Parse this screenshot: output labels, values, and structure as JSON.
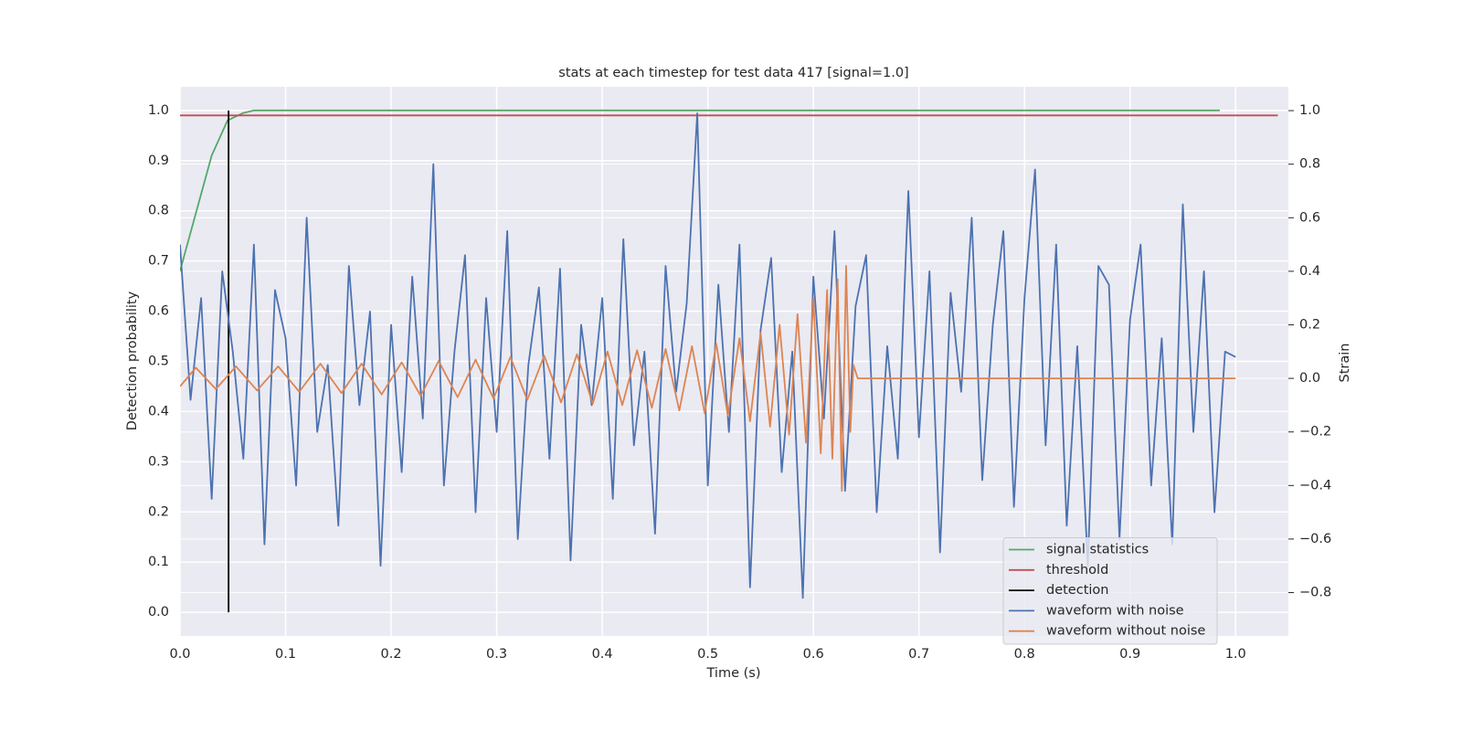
{
  "chart_data": {
    "type": "line",
    "title": "stats at each timestep for test data 417 [signal=1.0]",
    "xlabel": "Time (s)",
    "ylabel": "Detection probability",
    "y2label": "Strain",
    "xlim": [
      0,
      1.05
    ],
    "ylim": [
      -0.047,
      1.047
    ],
    "y2lim": [
      -0.962,
      1.089
    ],
    "xticks": [
      {
        "value": 0,
        "label": "0.0"
      },
      {
        "value": 0.1,
        "label": "0.1"
      },
      {
        "value": 0.2,
        "label": "0.2"
      },
      {
        "value": 0.3,
        "label": "0.3"
      },
      {
        "value": 0.4,
        "label": "0.4"
      },
      {
        "value": 0.5,
        "label": "0.5"
      },
      {
        "value": 0.6,
        "label": "0.6"
      },
      {
        "value": 0.7,
        "label": "0.7"
      },
      {
        "value": 0.8,
        "label": "0.8"
      },
      {
        "value": 0.9,
        "label": "0.9"
      },
      {
        "value": 1.0,
        "label": "1.0"
      }
    ],
    "yticks": [
      {
        "value": 0,
        "label": "0.0"
      },
      {
        "value": 0.1,
        "label": "0.1"
      },
      {
        "value": 0.2,
        "label": "0.2"
      },
      {
        "value": 0.3,
        "label": "0.3"
      },
      {
        "value": 0.4,
        "label": "0.4"
      },
      {
        "value": 0.5,
        "label": "0.5"
      },
      {
        "value": 0.6,
        "label": "0.6"
      },
      {
        "value": 0.7,
        "label": "0.7"
      },
      {
        "value": 0.8,
        "label": "0.8"
      },
      {
        "value": 0.9,
        "label": "0.9"
      },
      {
        "value": 1.0,
        "label": "1.0"
      }
    ],
    "y2ticks": [
      {
        "value": -0.8,
        "label": "−0.8"
      },
      {
        "value": -0.6,
        "label": "−0.6"
      },
      {
        "value": -0.4,
        "label": "−0.4"
      },
      {
        "value": -0.2,
        "label": "−0.2"
      },
      {
        "value": 0,
        "label": "0.0"
      },
      {
        "value": 0.2,
        "label": "0.2"
      },
      {
        "value": 0.4,
        "label": "0.4"
      },
      {
        "value": 0.6,
        "label": "0.6"
      },
      {
        "value": 0.8,
        "label": "0.8"
      },
      {
        "value": 1.0,
        "label": "1.0"
      }
    ],
    "grid": true,
    "legend": "lower right",
    "series": [
      {
        "name": "signal statistics",
        "color": "#55a868",
        "axis": "y",
        "x": [
          0,
          0.03,
          0.045,
          0.06,
          0.07,
          0.985
        ],
        "values": [
          0.68,
          0.91,
          0.98,
          0.995,
          1.0,
          1.0
        ]
      },
      {
        "name": "threshold",
        "color": "#c44e52",
        "axis": "y",
        "x": [
          0,
          1.04
        ],
        "values": [
          0.99,
          0.99
        ]
      },
      {
        "name": "detection",
        "color": "#000000",
        "axis": "y",
        "x": [
          0.046,
          0.046
        ],
        "values": [
          0,
          1.0
        ]
      },
      {
        "name": "waveform with noise",
        "color": "#4c72b0",
        "axis": "y2",
        "x": [
          0,
          0.01,
          0.02,
          0.03,
          0.04,
          0.05,
          0.06,
          0.07,
          0.08,
          0.09,
          0.1,
          0.11,
          0.12,
          0.13,
          0.14,
          0.15,
          0.16,
          0.17,
          0.18,
          0.19,
          0.2,
          0.21,
          0.22,
          0.23,
          0.24,
          0.25,
          0.26,
          0.27,
          0.28,
          0.29,
          0.3,
          0.31,
          0.32,
          0.33,
          0.34,
          0.35,
          0.36,
          0.37,
          0.38,
          0.39,
          0.4,
          0.41,
          0.42,
          0.43,
          0.44,
          0.45,
          0.46,
          0.47,
          0.48,
          0.49,
          0.5,
          0.51,
          0.52,
          0.53,
          0.54,
          0.55,
          0.56,
          0.57,
          0.58,
          0.59,
          0.6,
          0.61,
          0.62,
          0.63,
          0.64,
          0.65,
          0.66,
          0.67,
          0.68,
          0.69,
          0.7,
          0.71,
          0.72,
          0.73,
          0.74,
          0.75,
          0.76,
          0.77,
          0.78,
          0.79,
          0.8,
          0.81,
          0.82,
          0.83,
          0.84,
          0.85,
          0.86,
          0.87,
          0.88,
          0.89,
          0.9,
          0.91,
          0.92,
          0.93,
          0.94,
          0.95,
          0.96,
          0.97,
          0.98,
          0.99,
          1.0
        ],
        "values": [
          0.5,
          -0.08,
          0.3,
          -0.45,
          0.4,
          0.1,
          -0.3,
          0.5,
          -0.62,
          0.33,
          0.15,
          -0.4,
          0.6,
          -0.2,
          0.05,
          -0.55,
          0.42,
          -0.1,
          0.25,
          -0.7,
          0.2,
          -0.35,
          0.38,
          -0.15,
          0.8,
          -0.4,
          0.1,
          0.46,
          -0.5,
          0.3,
          -0.2,
          0.55,
          -0.6,
          0.05,
          0.34,
          -0.3,
          0.41,
          -0.68,
          0.2,
          -0.1,
          0.3,
          -0.45,
          0.52,
          -0.25,
          0.1,
          -0.58,
          0.42,
          -0.05,
          0.28,
          0.99,
          -0.4,
          0.35,
          -0.2,
          0.5,
          -0.78,
          0.18,
          0.45,
          -0.35,
          0.1,
          -0.82,
          0.38,
          -0.15,
          0.55,
          -0.42,
          0.27,
          0.46,
          -0.5,
          0.12,
          -0.3,
          0.7,
          -0.22,
          0.4,
          -0.65,
          0.32,
          -0.05,
          0.6,
          -0.38,
          0.2,
          0.55,
          -0.48,
          0.3,
          0.78,
          -0.25,
          0.5,
          -0.55,
          0.12,
          -0.7,
          0.42,
          0.35,
          -0.6,
          0.22,
          0.5,
          -0.4,
          0.15,
          -0.62,
          0.65,
          -0.2,
          0.4,
          -0.5,
          0.1,
          0.08
        ]
      },
      {
        "name": "waveform without noise",
        "color": "#dd8452",
        "axis": "y2",
        "x": [
          0,
          0.015,
          0.034,
          0.053,
          0.073,
          0.093,
          0.113,
          0.133,
          0.153,
          0.172,
          0.191,
          0.21,
          0.228,
          0.245,
          0.263,
          0.28,
          0.297,
          0.313,
          0.329,
          0.345,
          0.361,
          0.376,
          0.391,
          0.405,
          0.419,
          0.433,
          0.447,
          0.46,
          0.473,
          0.485,
          0.497,
          0.508,
          0.519,
          0.53,
          0.54,
          0.55,
          0.559,
          0.568,
          0.577,
          0.585,
          0.593,
          0.6,
          0.607,
          0.613,
          0.618,
          0.623,
          0.627,
          0.631,
          0.635,
          0.638,
          0.642,
          1.0
        ],
        "values": [
          -0.03,
          0.04,
          -0.04,
          0.045,
          -0.045,
          0.045,
          -0.05,
          0.055,
          -0.055,
          0.055,
          -0.06,
          0.06,
          -0.065,
          0.065,
          -0.07,
          0.07,
          -0.075,
          0.08,
          -0.08,
          0.085,
          -0.09,
          0.09,
          -0.095,
          0.1,
          -0.1,
          0.105,
          -0.11,
          0.11,
          -0.12,
          0.12,
          -0.13,
          0.13,
          -0.14,
          0.15,
          -0.16,
          0.17,
          -0.18,
          0.2,
          -0.21,
          0.24,
          -0.24,
          0.3,
          -0.28,
          0.33,
          -0.3,
          0.37,
          -0.42,
          0.42,
          -0.2,
          0.05,
          0,
          0
        ]
      }
    ]
  }
}
